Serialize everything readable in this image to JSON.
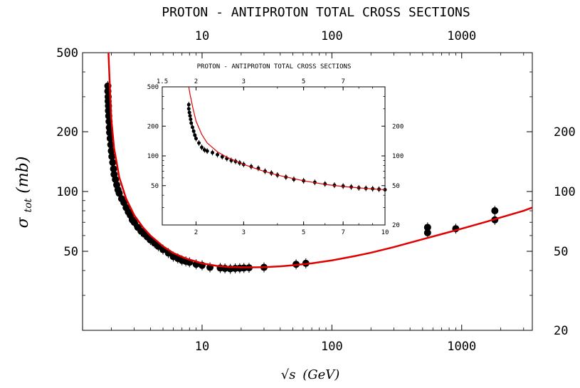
{
  "chart_data": [
    {
      "type": "scatter",
      "title": "PROTON - ANTIPROTON TOTAL CROSS SECTIONS",
      "xlabel_base": "√s",
      "xlabel_unit": "(GeV)",
      "ylabel_main": "σ",
      "ylabel_sub": "tot",
      "ylabel_unit": "(mb)",
      "x_scale": "log",
      "y_scale": "log",
      "xlim": [
        1.2,
        3500
      ],
      "ylim": [
        20,
        500
      ],
      "bottom_ticks": [
        "10",
        "100",
        "1000"
      ],
      "top_ticks": [
        "10",
        "100",
        "1000"
      ],
      "left_ticks": [
        "500",
        "200",
        "100",
        "50"
      ],
      "right_ticks": [
        "200",
        "100",
        "50",
        "20"
      ],
      "grid": false,
      "series": [
        {
          "kind": "data",
          "marker_color": "#000000",
          "points": [
            [
              1.88,
              340
            ],
            [
              1.88,
              320
            ],
            [
              1.89,
              300
            ],
            [
              1.89,
              285
            ],
            [
              1.9,
              270
            ],
            [
              1.9,
              255
            ],
            [
              1.91,
              240
            ],
            [
              1.92,
              225
            ],
            [
              1.93,
              210
            ],
            [
              1.94,
              198
            ],
            [
              1.96,
              185
            ],
            [
              1.98,
              172
            ],
            [
              2.0,
              160
            ],
            [
              2.02,
              150
            ],
            [
              2.05,
              140
            ],
            [
              2.08,
              130
            ],
            [
              2.1,
              122
            ],
            [
              2.15,
              115
            ],
            [
              2.2,
              108
            ],
            [
              2.25,
              102
            ],
            [
              2.3,
              98
            ],
            [
              2.4,
              92
            ],
            [
              2.5,
              88
            ],
            [
              2.6,
              83
            ],
            [
              2.7,
              79
            ],
            [
              2.8,
              76
            ],
            [
              2.9,
              72
            ],
            [
              3.0,
              70
            ],
            [
              3.2,
              66
            ],
            [
              3.4,
              63
            ],
            [
              3.6,
              61
            ],
            [
              3.8,
              59
            ],
            [
              4.0,
              57
            ],
            [
              4.3,
              55
            ],
            [
              4.6,
              53
            ],
            [
              5.0,
              51
            ],
            [
              5.5,
              49
            ],
            [
              6.0,
              47
            ],
            [
              6.5,
              46
            ],
            [
              7.0,
              45
            ],
            [
              7.5,
              44.5
            ],
            [
              8.0,
              44
            ],
            [
              9.0,
              43
            ],
            [
              10.0,
              42.5
            ],
            [
              11.5,
              41.5
            ],
            [
              13.8,
              41.2
            ],
            [
              15.0,
              41.0
            ],
            [
              16.5,
              40.8
            ],
            [
              18.0,
              41.0
            ],
            [
              19.5,
              41.1
            ],
            [
              21.0,
              41.2
            ],
            [
              23.0,
              41.3
            ],
            [
              30.0,
              41.5
            ],
            [
              53.0,
              43
            ],
            [
              63.0,
              43.5
            ],
            [
              546,
              62
            ],
            [
              546,
              66
            ],
            [
              900,
              65
            ],
            [
              1800,
              72
            ],
            [
              1800,
              80
            ]
          ]
        },
        {
          "kind": "fit",
          "color": "#e00000",
          "points": [
            [
              1.9,
              500
            ],
            [
              1.95,
              330
            ],
            [
              2.0,
              230
            ],
            [
              2.1,
              165
            ],
            [
              2.3,
              118
            ],
            [
              2.6,
              92
            ],
            [
              3.0,
              76
            ],
            [
              3.5,
              66
            ],
            [
              4.0,
              60
            ],
            [
              5.0,
              53
            ],
            [
              6.0,
              49
            ],
            [
              7.5,
              46
            ],
            [
              10,
              43.5
            ],
            [
              13,
              42.2
            ],
            [
              16,
              41.7
            ],
            [
              20,
              41.5
            ],
            [
              25,
              41.5
            ],
            [
              30,
              41.6
            ],
            [
              40,
              42.0
            ],
            [
              50,
              42.5
            ],
            [
              70,
              43.5
            ],
            [
              100,
              45
            ],
            [
              150,
              47.3
            ],
            [
              200,
              49.2
            ],
            [
              300,
              52.5
            ],
            [
              500,
              57.5
            ],
            [
              700,
              61
            ],
            [
              1000,
              65
            ],
            [
              1500,
              70
            ],
            [
              2000,
              74
            ],
            [
              3000,
              80
            ],
            [
              3500,
              83
            ]
          ]
        }
      ]
    },
    {
      "type": "scatter",
      "title": "PROTON - ANTIPROTON TOTAL CROSS SECTIONS",
      "x_scale": "log",
      "y_scale": "log",
      "xlim": [
        1.5,
        10
      ],
      "ylim": [
        20,
        500
      ],
      "bottom_ticks": [
        "2",
        "3",
        "5",
        "7",
        "10"
      ],
      "top_ticks": [
        "1.5",
        "2",
        "3",
        "5",
        "7"
      ],
      "left_ticks": [
        "500",
        "200",
        "100",
        "50"
      ],
      "right_ticks": [
        "200",
        "100",
        "50",
        "20"
      ],
      "grid": false,
      "series": [
        {
          "kind": "data",
          "marker_color": "#000000",
          "points": [
            [
              1.88,
              330
            ],
            [
              1.88,
              300
            ],
            [
              1.89,
              275
            ],
            [
              1.9,
              255
            ],
            [
              1.91,
              235
            ],
            [
              1.92,
              215
            ],
            [
              1.94,
              195
            ],
            [
              1.96,
              178
            ],
            [
              1.98,
              162
            ],
            [
              2.0,
              150
            ],
            [
              2.05,
              135
            ],
            [
              2.1,
              122
            ],
            [
              2.15,
              115
            ],
            [
              2.2,
              112
            ],
            [
              2.3,
              108
            ],
            [
              2.4,
              103
            ],
            [
              2.5,
              98
            ],
            [
              2.6,
              94
            ],
            [
              2.7,
              90
            ],
            [
              2.8,
              88
            ],
            [
              2.9,
              85
            ],
            [
              3.0,
              82
            ],
            [
              3.2,
              78
            ],
            [
              3.4,
              75
            ],
            [
              3.6,
              70
            ],
            [
              3.8,
              67
            ],
            [
              4.0,
              64
            ],
            [
              4.3,
              61
            ],
            [
              4.6,
              58
            ],
            [
              5.0,
              56
            ],
            [
              5.5,
              54
            ],
            [
              6.0,
              52
            ],
            [
              6.5,
              50.5
            ],
            [
              7.0,
              49.5
            ],
            [
              7.5,
              48.5
            ],
            [
              8.0,
              47.5
            ],
            [
              8.5,
              47
            ],
            [
              9.0,
              46.5
            ],
            [
              9.5,
              46
            ],
            [
              10.0,
              45.5
            ]
          ]
        },
        {
          "kind": "fit",
          "color": "#e00000",
          "points": [
            [
              1.88,
              500
            ],
            [
              1.9,
              420
            ],
            [
              1.95,
              300
            ],
            [
              2.0,
              225
            ],
            [
              2.1,
              165
            ],
            [
              2.2,
              135
            ],
            [
              2.4,
              110
            ],
            [
              2.6,
              97
            ],
            [
              3.0,
              82
            ],
            [
              3.5,
              71
            ],
            [
              4.0,
              64
            ],
            [
              5.0,
              56
            ],
            [
              6.0,
              51.5
            ],
            [
              7.0,
              49
            ],
            [
              8.0,
              47.5
            ],
            [
              9.0,
              46.3
            ],
            [
              10.0,
              45.5
            ]
          ]
        }
      ]
    }
  ]
}
